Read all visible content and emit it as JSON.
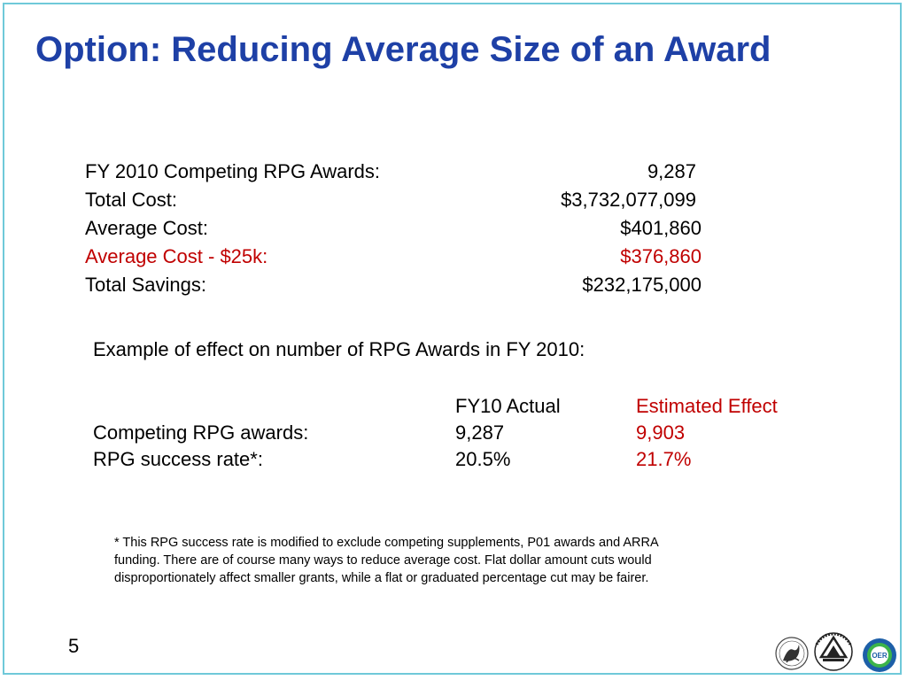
{
  "slide": {
    "title": "Option: Reducing Average Size of an Award",
    "page_number": "5"
  },
  "summary": {
    "rows": [
      {
        "label": "FY 2010 Competing RPG Awards:",
        "value": "9,287",
        "highlight": false
      },
      {
        "label": "Total Cost:",
        "value": "$3,732,077,099",
        "highlight": false
      },
      {
        "label": "Average Cost:",
        "value": "$401,860",
        "highlight": false
      },
      {
        "label": "Average Cost - $25k:",
        "value": "$376,860",
        "highlight": true
      },
      {
        "label": "Total Savings:",
        "value": "$232,175,000",
        "highlight": false
      }
    ]
  },
  "example": {
    "heading": "Example of effect on number of RPG Awards in FY 2010:",
    "col_actual": "FY10 Actual",
    "col_estimated": "Estimated Effect",
    "rows": [
      {
        "label": "Competing RPG awards:",
        "actual": "9,287",
        "estimated": "9,903"
      },
      {
        "label": "RPG success rate*:",
        "actual": "20.5%",
        "estimated": "21.7%"
      }
    ]
  },
  "footnote": {
    "line1": "* This RPG success rate is modified to exclude competing supplements, P01 awards and ARRA",
    "line2": "funding.  There are of course many ways to reduce average cost. Flat dollar amount cuts would",
    "line3": "disproportionately affect smaller grants, while a flat or graduated percentage cut may be fairer."
  },
  "logos": {
    "hhs": "hhs-seal-icon",
    "nih": "nih-logo-icon",
    "oer": "oer-logo-icon",
    "oer_text": "OER"
  },
  "colors": {
    "title": "#1e40a6",
    "highlight": "#c00000",
    "border": "#6fc9d9"
  }
}
